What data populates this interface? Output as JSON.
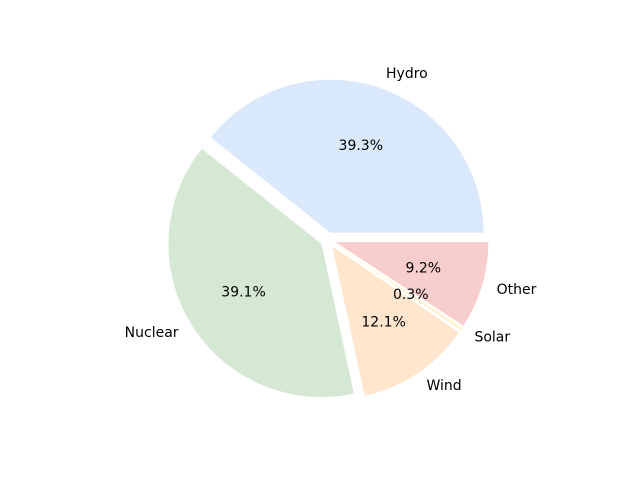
{
  "chart_data": {
    "type": "pie",
    "slices": [
      {
        "label": "Hydro",
        "value": 39.3,
        "pct_label": "39.3%",
        "color": "#dae8fc"
      },
      {
        "label": "Nuclear",
        "value": 39.1,
        "pct_label": "39.1%",
        "color": "#d5e8d4"
      },
      {
        "label": "Wind",
        "value": 12.1,
        "pct_label": "12.1%",
        "color": "#ffe6cc"
      },
      {
        "label": "Solar",
        "value": 0.3,
        "pct_label": "0.3%",
        "color": "#fff2cc"
      },
      {
        "label": "Other",
        "value": 9.2,
        "pct_label": "9.2%",
        "color": "#f8cecc"
      }
    ],
    "start_angle_deg": 0,
    "direction": "counterclockwise",
    "exploded": true,
    "legend": "none",
    "title": ""
  }
}
